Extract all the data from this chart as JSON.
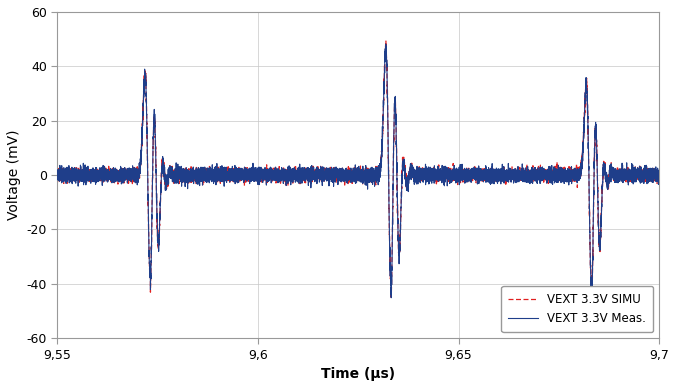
{
  "xlim": [
    9.55,
    9.7
  ],
  "ylim": [
    -60,
    60
  ],
  "xticks": [
    9.55,
    9.6,
    9.65,
    9.7
  ],
  "yticks": [
    -60,
    -40,
    -20,
    0,
    20,
    40,
    60
  ],
  "xlabel": "Time (μs)",
  "ylabel": "Voltage (mV)",
  "legend_labels": [
    "VEXT 3.3V Meas.",
    "VEXT 3.3V SIMU"
  ],
  "meas_color": "#1f3e8a",
  "simu_color": "#e02020",
  "background_color": "#ffffff",
  "grid_color": "#c8c8c8",
  "pulse_centers": [
    9.572,
    9.632,
    9.682
  ],
  "pulse1_peak": 42,
  "pulse1_dip": -47,
  "pulse2_peak": 52,
  "pulse2_dip": -52,
  "pulse3_peak": 38,
  "pulse3_dip": -50,
  "noise_amp": 2.5,
  "ring_decay": 0.004,
  "ring_freq": 400
}
